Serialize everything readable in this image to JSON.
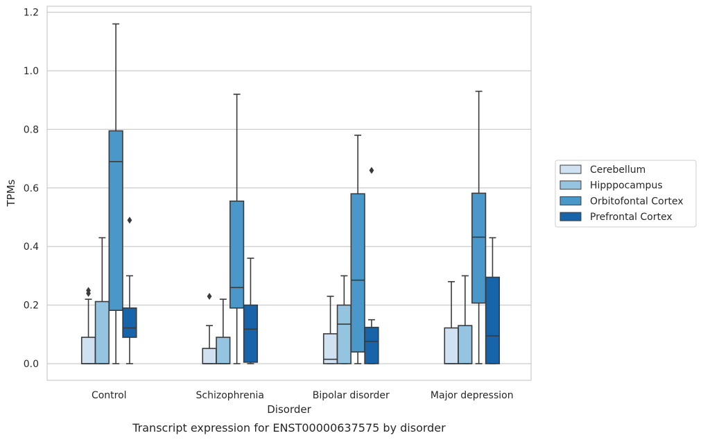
{
  "chart_data": {
    "type": "box",
    "title": "",
    "caption": "Transcript expression for ENST00000637575 by disorder",
    "xlabel": "Disorder",
    "ylabel": "TPMs",
    "ylim": [
      -0.055,
      1.22
    ],
    "yticks": [
      "0.0",
      "0.2",
      "0.4",
      "0.6",
      "0.8",
      "1.0",
      "1.2"
    ],
    "grid": "horizontal",
    "legend_position": "right",
    "categories": [
      "Control",
      "Schizophrenia",
      "Bipolar disorder",
      "Major depression"
    ],
    "series": [
      {
        "name": "Cerebellum",
        "color": "#d0e1f2",
        "boxes": [
          {
            "whislo": 0.0,
            "q1": 0.0,
            "med": 0.0,
            "q3": 0.09,
            "whishi": 0.22,
            "fliers": [
              0.24,
              0.25
            ]
          },
          {
            "whislo": 0.0,
            "q1": 0.0,
            "med": 0.0,
            "q3": 0.052,
            "whishi": 0.13,
            "fliers": [
              0.23
            ]
          },
          {
            "whislo": 0.0,
            "q1": 0.0,
            "med": 0.015,
            "q3": 0.102,
            "whishi": 0.23,
            "fliers": []
          },
          {
            "whislo": 0.0,
            "q1": 0.0,
            "med": 0.0,
            "q3": 0.122,
            "whishi": 0.28,
            "fliers": []
          }
        ]
      },
      {
        "name": "Hipppocampus",
        "color": "#94c4df",
        "boxes": [
          {
            "whislo": 0.0,
            "q1": 0.0,
            "med": 0.0,
            "q3": 0.212,
            "whishi": 0.43,
            "fliers": []
          },
          {
            "whislo": 0.0,
            "q1": 0.0,
            "med": 0.0,
            "q3": 0.09,
            "whishi": 0.22,
            "fliers": []
          },
          {
            "whislo": 0.0,
            "q1": 0.0,
            "med": 0.135,
            "q3": 0.2,
            "whishi": 0.3,
            "fliers": []
          },
          {
            "whislo": 0.0,
            "q1": 0.0,
            "med": 0.0,
            "q3": 0.13,
            "whishi": 0.3,
            "fliers": []
          }
        ]
      },
      {
        "name": "Orbitofontal Cortex",
        "color": "#4a98c9",
        "boxes": [
          {
            "whislo": 0.0,
            "q1": 0.182,
            "med": 0.69,
            "q3": 0.795,
            "whishi": 1.16,
            "fliers": []
          },
          {
            "whislo": 0.0,
            "q1": 0.19,
            "med": 0.26,
            "q3": 0.555,
            "whishi": 0.92,
            "fliers": []
          },
          {
            "whislo": 0.0,
            "q1": 0.04,
            "med": 0.285,
            "q3": 0.58,
            "whishi": 0.78,
            "fliers": []
          },
          {
            "whislo": 0.0,
            "q1": 0.207,
            "med": 0.432,
            "q3": 0.582,
            "whishi": 0.93,
            "fliers": []
          }
        ]
      },
      {
        "name": "Prefrontal Cortex",
        "color": "#1764ab",
        "boxes": [
          {
            "whislo": 0.0,
            "q1": 0.09,
            "med": 0.122,
            "q3": 0.19,
            "whishi": 0.3,
            "fliers": [
              0.49
            ]
          },
          {
            "whislo": 0.0,
            "q1": 0.005,
            "med": 0.118,
            "q3": 0.2,
            "whishi": 0.36,
            "fliers": []
          },
          {
            "whislo": 0.0,
            "q1": 0.0,
            "med": 0.076,
            "q3": 0.124,
            "whishi": 0.15,
            "fliers": [
              0.66
            ]
          },
          {
            "whislo": 0.0,
            "q1": 0.0,
            "med": 0.095,
            "q3": 0.295,
            "whishi": 0.43,
            "fliers": []
          }
        ]
      }
    ]
  }
}
